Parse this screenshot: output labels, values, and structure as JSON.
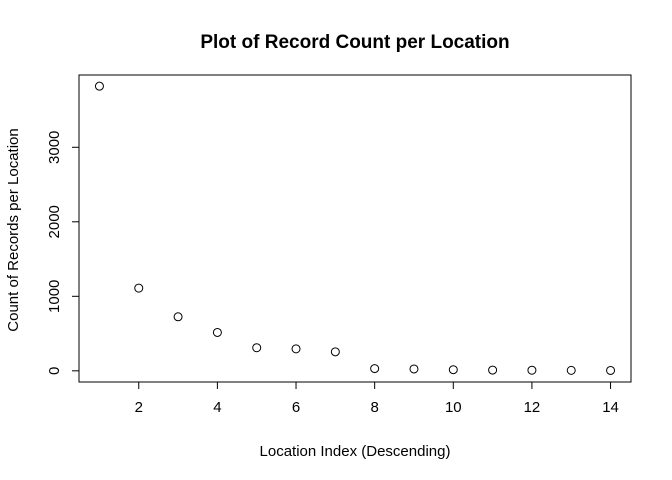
{
  "chart_data": {
    "type": "scatter",
    "title": "Plot of Record Count per Location",
    "xlabel": "Location Index (Descending)",
    "ylabel": "Count of Records per Location",
    "x": [
      1,
      2,
      3,
      4,
      5,
      6,
      7,
      8,
      9,
      10,
      11,
      12,
      13,
      14
    ],
    "y": [
      3820,
      1110,
      725,
      515,
      310,
      295,
      255,
      30,
      25,
      15,
      10,
      8,
      6,
      5
    ],
    "xlim": [
      0.48,
      14.52
    ],
    "ylim": [
      -150,
      3970
    ],
    "x_ticks": [
      2,
      4,
      6,
      8,
      10,
      12,
      14
    ],
    "y_ticks": [
      0,
      1000,
      2000,
      3000
    ],
    "grid": false,
    "marker": "open-circle",
    "colors": {
      "points": "#000000",
      "axes": "#000000",
      "background": "#ffffff"
    }
  }
}
